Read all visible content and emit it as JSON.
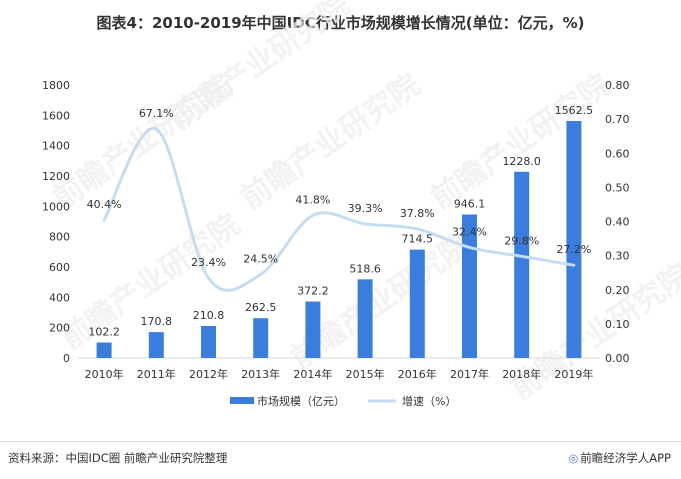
{
  "title": "图表4：2010-2019年中国IDC行业市场规模增长情况(单位：亿元，%)",
  "footer": {
    "source": "资料来源：中国IDC圈 前瞻产业研究院整理",
    "brand_icon": "前瞻-logo-icon",
    "brand": "前瞻经济学人APP"
  },
  "watermark": "前瞻产业研究院",
  "colors": {
    "bar": "#3b7ddd",
    "line": "#c5dcf2",
    "axis": "#d9d9d9",
    "text": "#333333"
  },
  "chart_data": {
    "type": "bar",
    "categories": [
      "2010年",
      "2011年",
      "2012年",
      "2013年",
      "2014年",
      "2015年",
      "2016年",
      "2017年",
      "2018年",
      "2019年"
    ],
    "series": [
      {
        "name": "市场规模（亿元）",
        "type": "bar",
        "axis": "left",
        "values": [
          102.2,
          170.8,
          210.8,
          262.5,
          372.2,
          518.6,
          714.5,
          946.1,
          1228.0,
          1562.5
        ],
        "labels": [
          "102.2",
          "170.8",
          "210.8",
          "262.5",
          "372.2",
          "518.6",
          "714.5",
          "946.1",
          "1228.0",
          "1562.5"
        ]
      },
      {
        "name": "增速（%）",
        "type": "line",
        "axis": "right",
        "values": [
          0.404,
          0.671,
          0.234,
          0.245,
          0.418,
          0.393,
          0.378,
          0.324,
          0.298,
          0.272
        ],
        "labels": [
          "40.4%",
          "67.1%",
          "23.4%",
          "24.5%",
          "41.8%",
          "39.3%",
          "37.8%",
          "32.4%",
          "29.8%",
          "27.2%"
        ]
      }
    ],
    "y_left": {
      "lim": [
        0,
        1800
      ],
      "ticks": [
        "0",
        "200",
        "400",
        "600",
        "800",
        "1000",
        "1200",
        "1400",
        "1600",
        "1800"
      ]
    },
    "y_right": {
      "lim": [
        0,
        0.8
      ],
      "ticks": [
        "0.00",
        "0.10",
        "0.20",
        "0.30",
        "0.40",
        "0.50",
        "0.60",
        "0.70",
        "0.80"
      ]
    },
    "legend": [
      "市场规模（亿元）",
      "增速（%）"
    ],
    "legend_position": "bottom"
  }
}
